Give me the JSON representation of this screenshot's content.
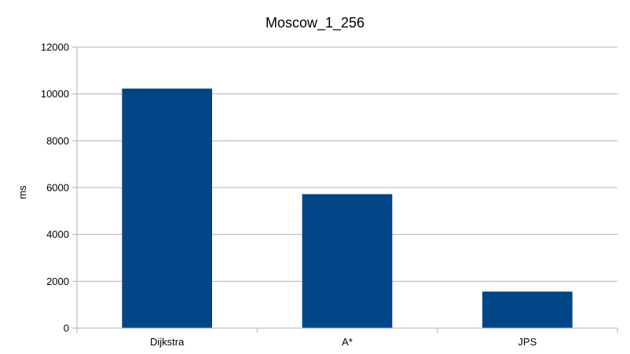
{
  "chart_data": {
    "type": "bar",
    "title": "Moscow_1_256",
    "xlabel": "",
    "ylabel": "ms",
    "categories": [
      "Dijkstra",
      "A*",
      "JPS"
    ],
    "values": [
      10230,
      5720,
      1560
    ],
    "ylim": [
      0,
      12000
    ],
    "yticks": [
      0,
      2000,
      4000,
      6000,
      8000,
      10000,
      12000
    ],
    "grid": true,
    "legend": "none",
    "bar_color": "#004586",
    "grid_color": "#b3b3b3"
  }
}
